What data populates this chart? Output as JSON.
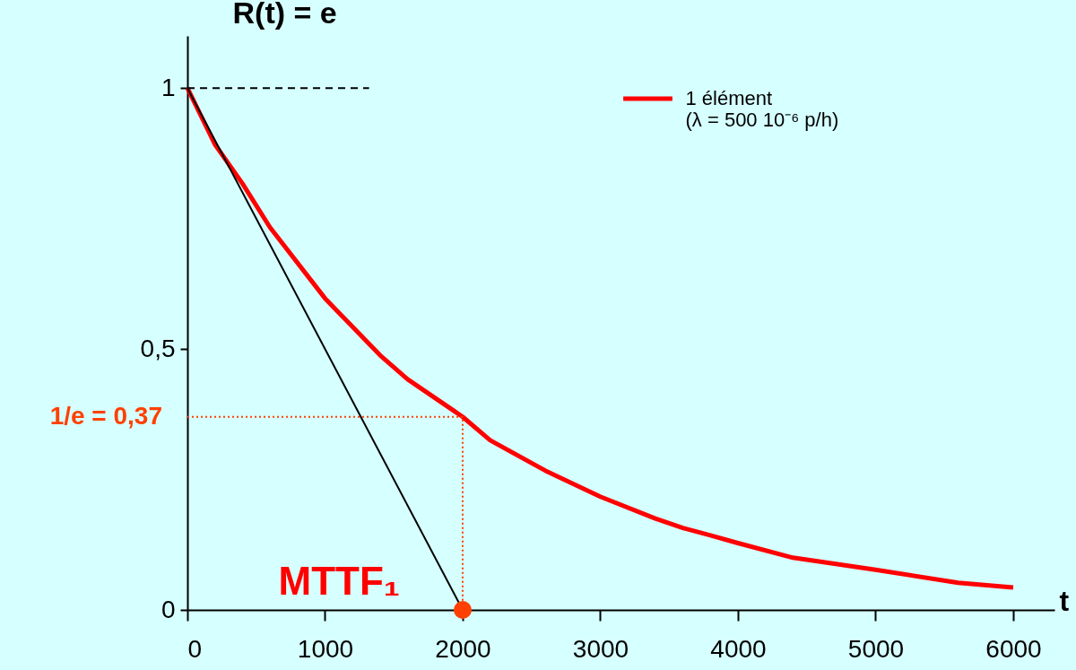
{
  "chart_data": {
    "type": "line",
    "ylabel": "R(t) = e",
    "xlabel": "t",
    "xlim": [
      0,
      6300
    ],
    "ylim": [
      0,
      1.1
    ],
    "xticks": [
      0,
      1000,
      2000,
      3000,
      4000,
      5000,
      6000
    ],
    "yticks": [
      0,
      {
        "value": 0.5,
        "label": "0,5"
      },
      1
    ],
    "grid": false,
    "legend": "top right",
    "series": [
      {
        "name": "1 élément\n(λ = 500 10⁻⁶ p/h)",
        "color": "#ff0000",
        "line_style": "solid",
        "x": [
          0,
          200,
          400,
          600,
          1000,
          1400,
          1600,
          2000,
          2200,
          2600,
          3000,
          3400,
          3600,
          3800,
          4000,
          4400,
          5000,
          5600,
          6000
        ],
        "values": [
          1,
          0.892,
          0.817,
          0.733,
          0.597,
          0.488,
          0.442,
          0.37,
          0.325,
          0.267,
          0.217,
          0.175,
          0.157,
          0.143,
          0.128,
          0.1,
          0.077,
          0.052,
          0.043
        ]
      },
      {
        "type": "line",
        "color": "#000000",
        "line_style": "solid",
        "x": [
          0,
          2000
        ],
        "values": [
          1,
          0
        ]
      },
      {
        "type": "line",
        "color": "#000000",
        "line_style": "dashed",
        "x": [
          0,
          1320
        ],
        "values": [
          1,
          1
        ]
      },
      {
        "type": "line",
        "color": "#ff4000",
        "line_style": "dotted",
        "x": [
          0,
          2000,
          2000
        ],
        "values": [
          0.37,
          0.37,
          0
        ]
      },
      {
        "type": "scatter",
        "color": "#ff4000",
        "x": [
          2000
        ],
        "values": [
          0
        ]
      }
    ],
    "annotations": [
      {
        "text": "1/e = 0,37",
        "x": 0,
        "y": 0.37
      },
      {
        "text": "MTTF₁",
        "x": 2000,
        "y": 0
      }
    ]
  }
}
